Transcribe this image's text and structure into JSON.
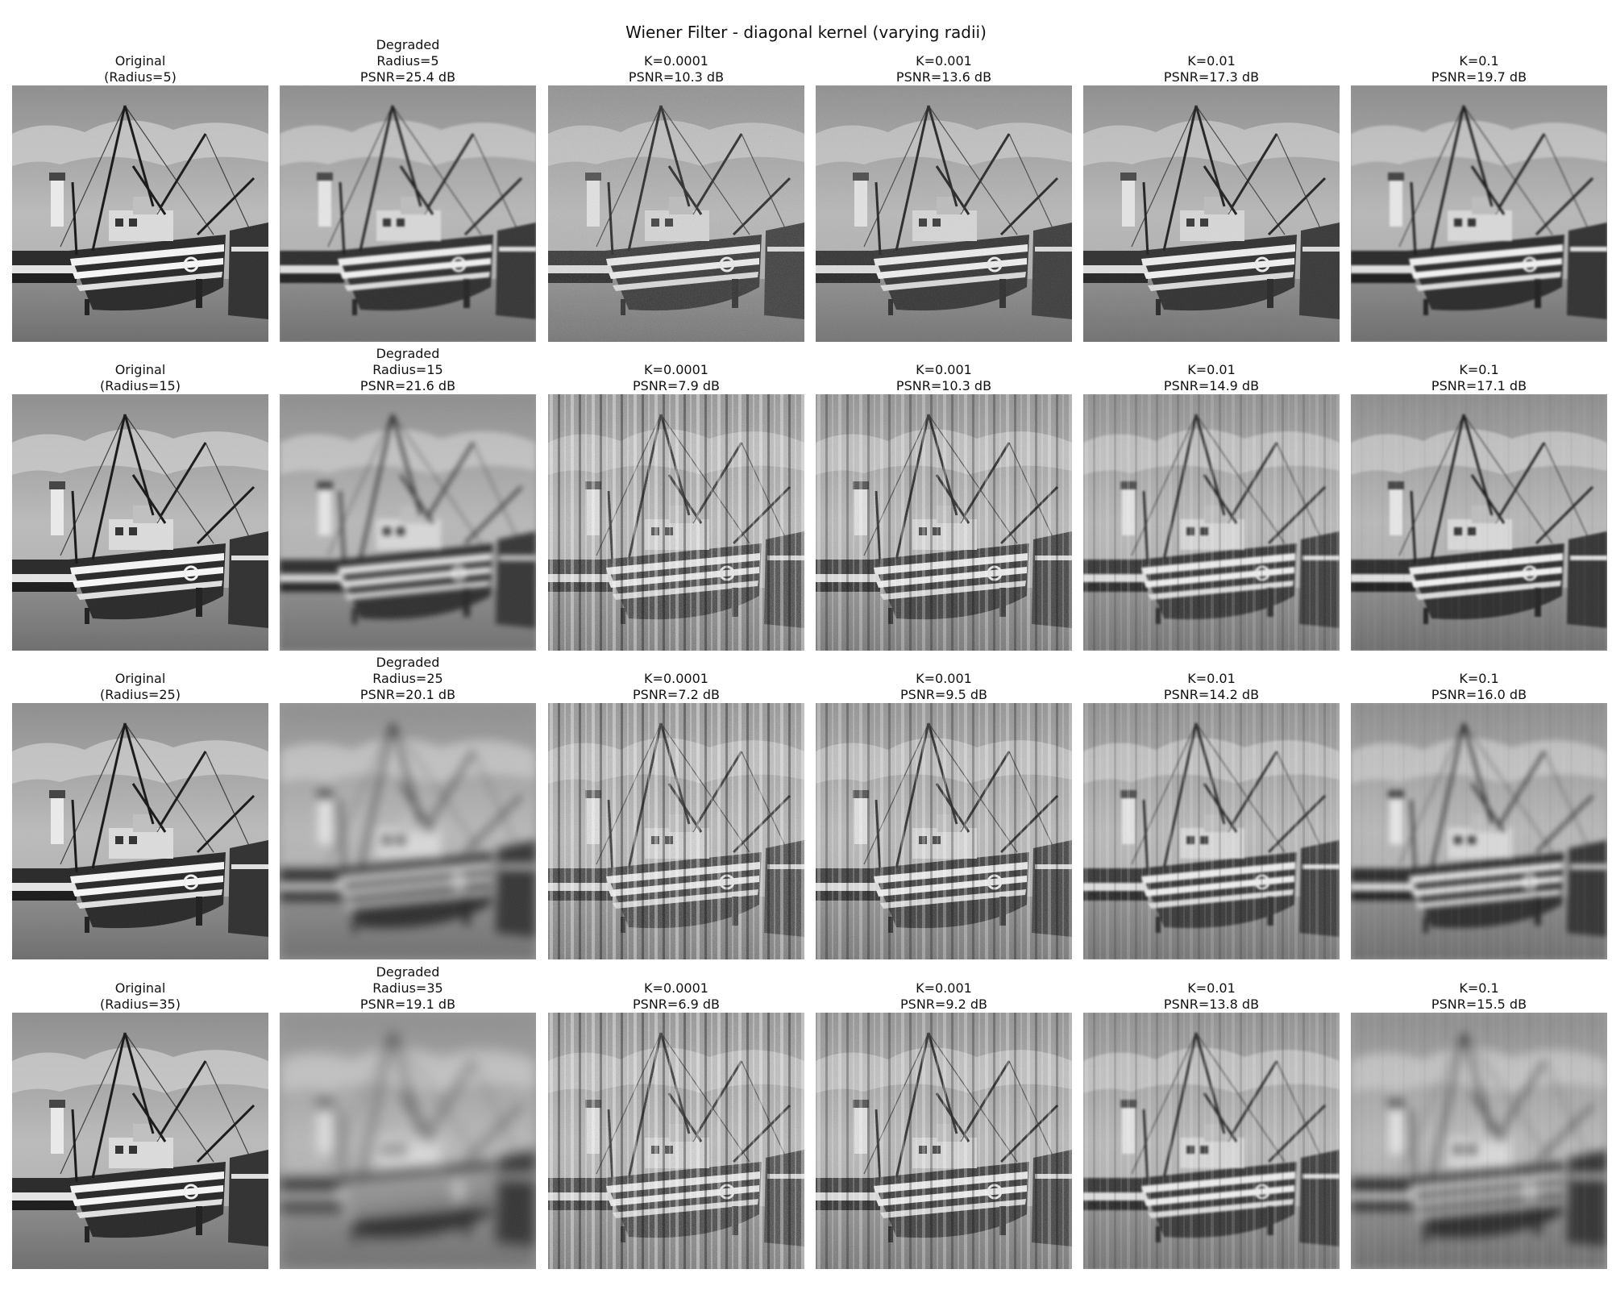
{
  "title": "Wiener Filter - diagonal kernel (varying radii)",
  "rows": [
    {
      "original_label": "Original",
      "original_radius": "(Radius=5)",
      "degraded_label": "Degraded",
      "degraded_radius": "Radius=5",
      "degraded_psnr": "PSNR=25.4 dB",
      "results": [
        {
          "k": "K=0.0001",
          "psnr": "PSNR=10.3 dB"
        },
        {
          "k": "K=0.001",
          "psnr": "PSNR=13.6 dB"
        },
        {
          "k": "K=0.01",
          "psnr": "PSNR=17.3 dB"
        },
        {
          "k": "K=0.1",
          "psnr": "PSNR=19.7 dB"
        }
      ]
    },
    {
      "original_label": "Original",
      "original_radius": "(Radius=15)",
      "degraded_label": "Degraded",
      "degraded_radius": "Radius=15",
      "degraded_psnr": "PSNR=21.6 dB",
      "results": [
        {
          "k": "K=0.0001",
          "psnr": "PSNR=7.9 dB"
        },
        {
          "k": "K=0.001",
          "psnr": "PSNR=10.3 dB"
        },
        {
          "k": "K=0.01",
          "psnr": "PSNR=14.9 dB"
        },
        {
          "k": "K=0.1",
          "psnr": "PSNR=17.1 dB"
        }
      ]
    },
    {
      "original_label": "Original",
      "original_radius": "(Radius=25)",
      "degraded_label": "Degraded",
      "degraded_radius": "Radius=25",
      "degraded_psnr": "PSNR=20.1 dB",
      "results": [
        {
          "k": "K=0.0001",
          "psnr": "PSNR=7.2 dB"
        },
        {
          "k": "K=0.001",
          "psnr": "PSNR=9.5 dB"
        },
        {
          "k": "K=0.01",
          "psnr": "PSNR=14.2 dB"
        },
        {
          "k": "K=0.1",
          "psnr": "PSNR=16.0 dB"
        }
      ]
    },
    {
      "original_label": "Original",
      "original_radius": "(Radius=35)",
      "degraded_label": "Degraded",
      "degraded_radius": "Radius=35",
      "degraded_psnr": "PSNR=19.1 dB",
      "results": [
        {
          "k": "K=0.0001",
          "psnr": "PSNR=6.9 dB"
        },
        {
          "k": "K=0.001",
          "psnr": "PSNR=9.2 dB"
        },
        {
          "k": "K=0.01",
          "psnr": "PSNR=13.8 dB"
        },
        {
          "k": "K=0.1",
          "psnr": "PSNR=15.5 dB"
        }
      ]
    }
  ]
}
